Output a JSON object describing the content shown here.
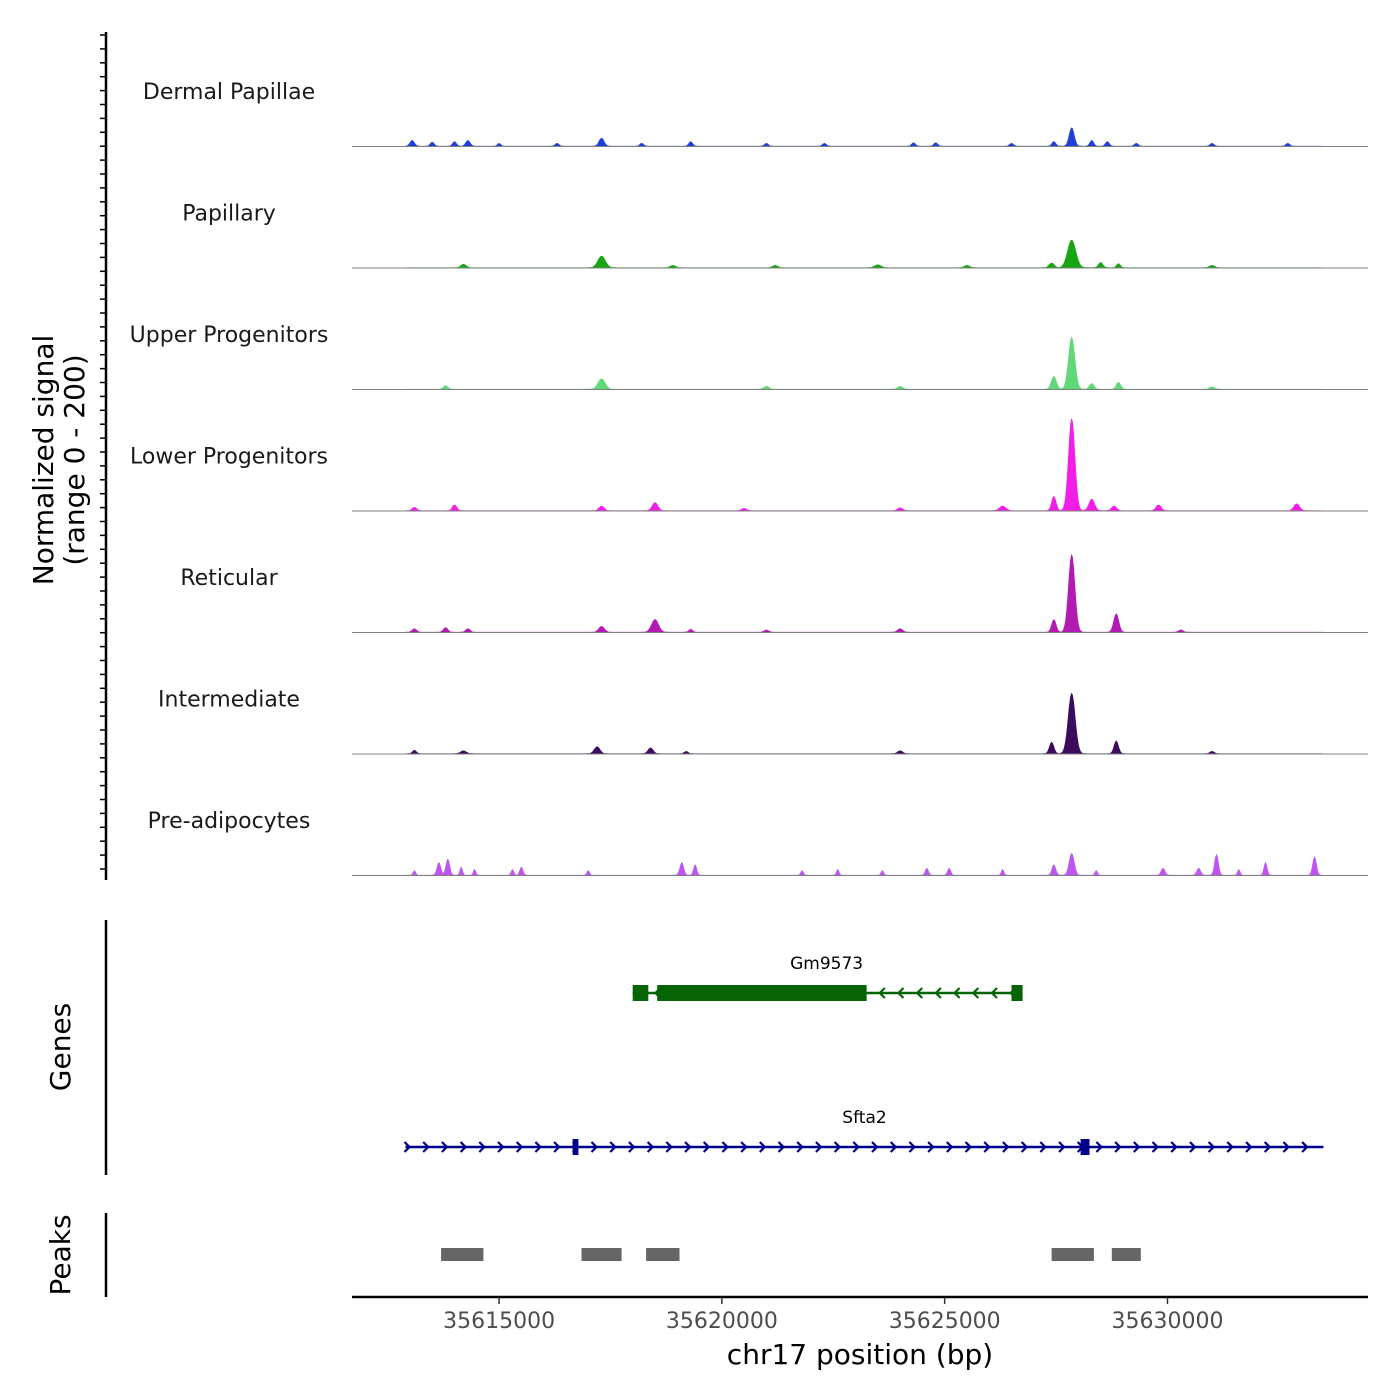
{
  "chart_data": {
    "type": "area",
    "title": "",
    "chromosome": "chr17",
    "xlabel": "chr17 position (bp)",
    "ylabel": "Normalized signal",
    "ylabel_range": "(range 0 - 200)",
    "xlim": [
      35611700,
      35634500
    ],
    "xticks": [
      35615000,
      35620000,
      35625000,
      35630000
    ],
    "xtick_labels": [
      "35615000",
      "35620000",
      "35625000",
      "35630000"
    ],
    "signal_range": [
      0,
      200
    ],
    "tracks": [
      {
        "name": "Dermal Papillae",
        "color": "#1f3fd6",
        "peaks": [
          {
            "x": 35613050,
            "h": 10,
            "w": 70
          },
          {
            "x": 35613500,
            "h": 7,
            "w": 60
          },
          {
            "x": 35614000,
            "h": 8,
            "w": 60
          },
          {
            "x": 35614300,
            "h": 10,
            "w": 70
          },
          {
            "x": 35615000,
            "h": 5,
            "w": 50
          },
          {
            "x": 35616300,
            "h": 5,
            "w": 60
          },
          {
            "x": 35617300,
            "h": 14,
            "w": 80
          },
          {
            "x": 35618200,
            "h": 5,
            "w": 60
          },
          {
            "x": 35619300,
            "h": 8,
            "w": 60
          },
          {
            "x": 35621000,
            "h": 5,
            "w": 60
          },
          {
            "x": 35622300,
            "h": 5,
            "w": 60
          },
          {
            "x": 35624300,
            "h": 6,
            "w": 60
          },
          {
            "x": 35624800,
            "h": 6,
            "w": 60
          },
          {
            "x": 35626500,
            "h": 5,
            "w": 60
          },
          {
            "x": 35627450,
            "h": 8,
            "w": 60
          },
          {
            "x": 35627850,
            "h": 32,
            "w": 80
          },
          {
            "x": 35628300,
            "h": 10,
            "w": 60
          },
          {
            "x": 35628650,
            "h": 8,
            "w": 60
          },
          {
            "x": 35629300,
            "h": 5,
            "w": 60
          },
          {
            "x": 35631000,
            "h": 5,
            "w": 60
          },
          {
            "x": 35632700,
            "h": 5,
            "w": 60
          }
        ]
      },
      {
        "name": "Papillary",
        "color": "#17a612",
        "peaks": [
          {
            "x": 35614200,
            "h": 6,
            "w": 80
          },
          {
            "x": 35617300,
            "h": 20,
            "w": 120
          },
          {
            "x": 35618900,
            "h": 4,
            "w": 80
          },
          {
            "x": 35621200,
            "h": 4,
            "w": 80
          },
          {
            "x": 35623500,
            "h": 5,
            "w": 100
          },
          {
            "x": 35625500,
            "h": 4,
            "w": 80
          },
          {
            "x": 35627400,
            "h": 8,
            "w": 80
          },
          {
            "x": 35627850,
            "h": 48,
            "w": 130
          },
          {
            "x": 35628500,
            "h": 9,
            "w": 70
          },
          {
            "x": 35628900,
            "h": 7,
            "w": 60
          },
          {
            "x": 35631000,
            "h": 4,
            "w": 80
          }
        ]
      },
      {
        "name": "Upper Progenitors",
        "color": "#5fd877",
        "peaks": [
          {
            "x": 35613800,
            "h": 6,
            "w": 70
          },
          {
            "x": 35617300,
            "h": 18,
            "w": 110
          },
          {
            "x": 35621000,
            "h": 5,
            "w": 80
          },
          {
            "x": 35624000,
            "h": 5,
            "w": 80
          },
          {
            "x": 35627450,
            "h": 22,
            "w": 80
          },
          {
            "x": 35627850,
            "h": 90,
            "w": 100
          },
          {
            "x": 35628300,
            "h": 10,
            "w": 70
          },
          {
            "x": 35628900,
            "h": 12,
            "w": 70
          },
          {
            "x": 35631000,
            "h": 4,
            "w": 80
          }
        ]
      },
      {
        "name": "Lower Progenitors",
        "color": "#f21ee8",
        "peaks": [
          {
            "x": 35613100,
            "h": 6,
            "w": 70
          },
          {
            "x": 35614000,
            "h": 10,
            "w": 70
          },
          {
            "x": 35617300,
            "h": 8,
            "w": 80
          },
          {
            "x": 35618500,
            "h": 14,
            "w": 90
          },
          {
            "x": 35620500,
            "h": 4,
            "w": 80
          },
          {
            "x": 35624000,
            "h": 5,
            "w": 80
          },
          {
            "x": 35626300,
            "h": 8,
            "w": 100
          },
          {
            "x": 35627450,
            "h": 25,
            "w": 70
          },
          {
            "x": 35627850,
            "h": 160,
            "w": 100
          },
          {
            "x": 35628300,
            "h": 20,
            "w": 90
          },
          {
            "x": 35628800,
            "h": 8,
            "w": 80
          },
          {
            "x": 35629800,
            "h": 10,
            "w": 80
          },
          {
            "x": 35632900,
            "h": 12,
            "w": 90
          }
        ]
      },
      {
        "name": "Reticular",
        "color": "#b31ab1",
        "peaks": [
          {
            "x": 35613100,
            "h": 6,
            "w": 70
          },
          {
            "x": 35613800,
            "h": 8,
            "w": 70
          },
          {
            "x": 35614300,
            "h": 6,
            "w": 70
          },
          {
            "x": 35617300,
            "h": 10,
            "w": 90
          },
          {
            "x": 35618500,
            "h": 22,
            "w": 110
          },
          {
            "x": 35619300,
            "h": 5,
            "w": 60
          },
          {
            "x": 35621000,
            "h": 4,
            "w": 70
          },
          {
            "x": 35624000,
            "h": 6,
            "w": 80
          },
          {
            "x": 35627450,
            "h": 22,
            "w": 70
          },
          {
            "x": 35627850,
            "h": 135,
            "w": 100
          },
          {
            "x": 35628850,
            "h": 32,
            "w": 80
          },
          {
            "x": 35630300,
            "h": 4,
            "w": 70
          }
        ]
      },
      {
        "name": "Intermediate",
        "color": "#3b0c5e",
        "peaks": [
          {
            "x": 35613100,
            "h": 6,
            "w": 60
          },
          {
            "x": 35614200,
            "h": 5,
            "w": 90
          },
          {
            "x": 35617200,
            "h": 12,
            "w": 90
          },
          {
            "x": 35618400,
            "h": 10,
            "w": 80
          },
          {
            "x": 35619200,
            "h": 4,
            "w": 60
          },
          {
            "x": 35624000,
            "h": 5,
            "w": 80
          },
          {
            "x": 35627400,
            "h": 20,
            "w": 70
          },
          {
            "x": 35627850,
            "h": 105,
            "w": 110
          },
          {
            "x": 35628850,
            "h": 22,
            "w": 70
          },
          {
            "x": 35631000,
            "h": 4,
            "w": 70
          }
        ]
      },
      {
        "name": "Pre-adipocytes",
        "color": "#bd56ee",
        "peaks": [
          {
            "x": 35613100,
            "h": 8,
            "w": 40
          },
          {
            "x": 35613650,
            "h": 22,
            "w": 60
          },
          {
            "x": 35613850,
            "h": 28,
            "w": 60
          },
          {
            "x": 35614150,
            "h": 14,
            "w": 40
          },
          {
            "x": 35614450,
            "h": 10,
            "w": 40
          },
          {
            "x": 35615300,
            "h": 10,
            "w": 40
          },
          {
            "x": 35615500,
            "h": 14,
            "w": 50
          },
          {
            "x": 35617000,
            "h": 8,
            "w": 40
          },
          {
            "x": 35619100,
            "h": 22,
            "w": 60
          },
          {
            "x": 35619400,
            "h": 18,
            "w": 50
          },
          {
            "x": 35621800,
            "h": 8,
            "w": 40
          },
          {
            "x": 35622600,
            "h": 10,
            "w": 40
          },
          {
            "x": 35623600,
            "h": 8,
            "w": 40
          },
          {
            "x": 35624600,
            "h": 12,
            "w": 50
          },
          {
            "x": 35625100,
            "h": 12,
            "w": 50
          },
          {
            "x": 35626300,
            "h": 10,
            "w": 40
          },
          {
            "x": 35627450,
            "h": 18,
            "w": 60
          },
          {
            "x": 35627850,
            "h": 38,
            "w": 80
          },
          {
            "x": 35628400,
            "h": 8,
            "w": 40
          },
          {
            "x": 35629900,
            "h": 12,
            "w": 60
          },
          {
            "x": 35630700,
            "h": 12,
            "w": 60
          },
          {
            "x": 35631100,
            "h": 36,
            "w": 60
          },
          {
            "x": 35631600,
            "h": 10,
            "w": 40
          },
          {
            "x": 35632200,
            "h": 22,
            "w": 50
          },
          {
            "x": 35633300,
            "h": 32,
            "w": 60
          }
        ]
      }
    ],
    "genes_track": {
      "label": "Genes",
      "genes": [
        {
          "name": "Gm9573",
          "color": "#066406",
          "strand": "-",
          "start": 35618000,
          "end": 35626700,
          "exons": [
            [
              35618000,
              35618350
            ],
            [
              35618550,
              35623250
            ],
            [
              35626500,
              35626750
            ]
          ]
        },
        {
          "name": "Sfta2",
          "color": "#00008b",
          "strand": "+",
          "start": 35612900,
          "end": 35633500,
          "exons": [
            [
              35616650,
              35616780
            ],
            [
              35628050,
              35628250
            ]
          ]
        }
      ]
    },
    "peaks_track": {
      "label": "Peaks",
      "color": "#666666",
      "regions": [
        [
          35613700,
          35614650
        ],
        [
          35616850,
          35617750
        ],
        [
          35618300,
          35619050
        ],
        [
          35627400,
          35628350
        ],
        [
          35628750,
          35629400
        ]
      ]
    }
  }
}
